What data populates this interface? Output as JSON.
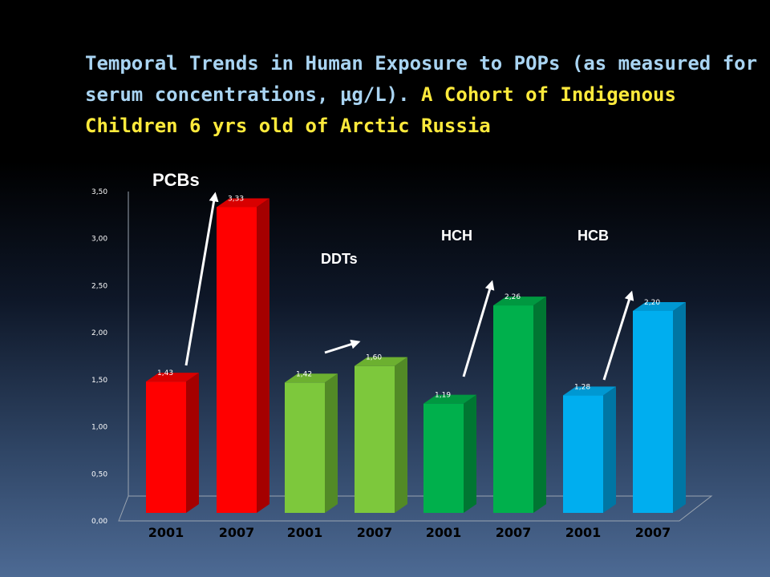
{
  "slide": {
    "title_part1": "Temporal Trends in Human Exposure to POPs (as measured for serum concentrations, µg/L).",
    "title_part2": "A Cohort of Indigenous Children 6 yrs old of Arctic Russia",
    "colors": {
      "title": "#a9d4f2",
      "title_highlight": "#ffea3c"
    }
  },
  "chart_data": {
    "type": "bar",
    "style": "3d-column",
    "title": "",
    "xlabel": "",
    "ylabel": "",
    "ylim": [
      0,
      3.5
    ],
    "yticks": [
      "0,00",
      "0,50",
      "1,00",
      "1,50",
      "2,00",
      "2,50",
      "3,00",
      "3,50"
    ],
    "grid": false,
    "legend": "none",
    "categories": [
      "2001",
      "2007",
      "2001",
      "2007",
      "2001",
      "2007",
      "2001",
      "2007"
    ],
    "values": [
      1.43,
      3.33,
      1.42,
      1.6,
      1.19,
      2.26,
      1.28,
      2.2
    ],
    "value_labels": [
      "1,43",
      "3,33",
      "1,42",
      "1,60",
      "1,19",
      "2,26",
      "1,28",
      "2,20"
    ],
    "groups": [
      {
        "name": "PCBs",
        "bars": [
          0,
          1
        ],
        "color": "#ff0000",
        "color_top": "#d80000",
        "color_side": "#a50000"
      },
      {
        "name": "DDTs",
        "bars": [
          2,
          3
        ],
        "color": "#7dc83c",
        "color_top": "#6cb030",
        "color_side": "#528a26"
      },
      {
        "name": "HCH",
        "bars": [
          4,
          5
        ],
        "color": "#00b04c",
        "color_top": "#009840",
        "color_side": "#007632"
      },
      {
        "name": "HCB",
        "bars": [
          6,
          7
        ],
        "color": "#00aeef",
        "color_top": "#0098d2",
        "color_side": "#0076a4"
      }
    ],
    "annotations": "upward arrow over each group from 2001 to 2007 bar"
  }
}
